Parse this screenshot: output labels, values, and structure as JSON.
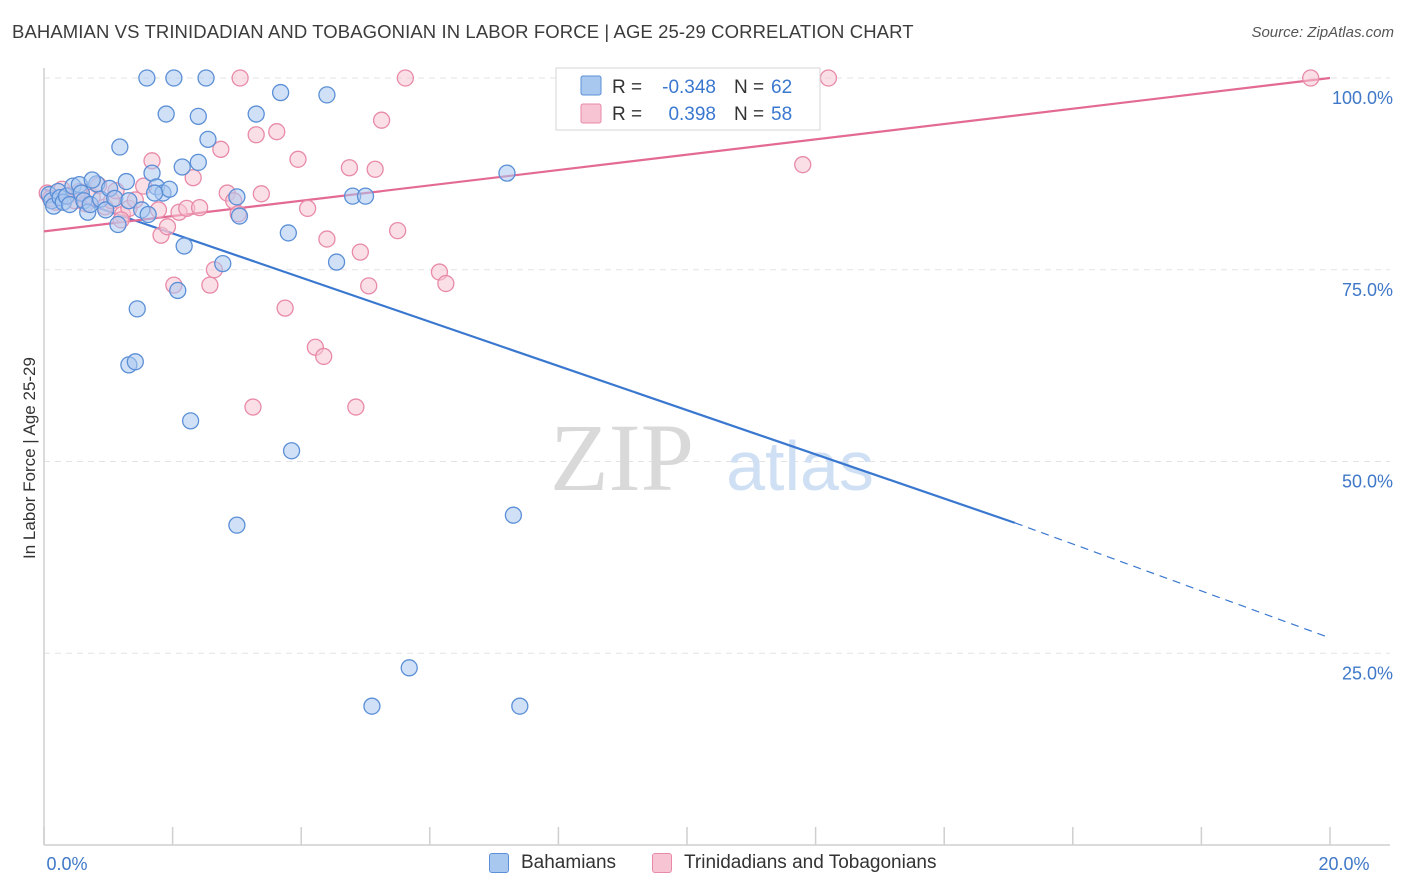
{
  "title": "BAHAMIAN VS TRINIDADIAN AND TOBAGONIAN IN LABOR FORCE | AGE 25-29 CORRELATION CHART",
  "source": "Source: ZipAtlas.com",
  "watermark": {
    "zip": "ZIP",
    "atlas": "atlas"
  },
  "colors": {
    "blue_fill": "#a9c8f0",
    "blue_stroke": "#5b8fd6",
    "blue_line": "#3a78d0",
    "pink_fill": "#f7c4d4",
    "pink_stroke": "#e88aa8",
    "pink_line": "#e36a94",
    "tick_label": "#3f78c8",
    "grid": "#e3e3e3"
  },
  "legend": {
    "r_label": "R =",
    "n_label": "N =",
    "rows": [
      {
        "r": "-0.348",
        "n": "62"
      },
      {
        "r": "0.398",
        "n": "58"
      }
    ]
  },
  "chart_data": {
    "type": "scatter",
    "title": "BAHAMIAN VS TRINIDADIAN AND TOBAGONIAN IN LABOR FORCE | AGE 25-29 CORRELATION CHART",
    "xlabel": "",
    "ylabel": "In Labor Force | Age 25-29",
    "xlim": [
      0,
      20
    ],
    "ylim": [
      0,
      100
    ],
    "x_tick_labels": [
      "0.0%",
      "20.0%"
    ],
    "y_ticks": [
      25,
      50,
      75,
      100
    ],
    "y_tick_labels": [
      "25.0%",
      "50.0%",
      "75.0%",
      "100.0%"
    ],
    "series": [
      {
        "name": "Bahamians",
        "r": -0.348,
        "n": 62,
        "trend": {
          "x0": 0.0,
          "y0": 85.5,
          "x1": 15.1,
          "y1": 42.0,
          "dash_to_x": 20.0,
          "dash_to_y": 27.0
        },
        "points": [
          [
            0.08,
            84.8
          ],
          [
            0.12,
            84.0
          ],
          [
            0.15,
            83.3
          ],
          [
            0.22,
            85.2
          ],
          [
            0.25,
            84.4
          ],
          [
            0.3,
            83.8
          ],
          [
            0.35,
            84.6
          ],
          [
            0.4,
            83.5
          ],
          [
            0.45,
            85.9
          ],
          [
            0.55,
            86.1
          ],
          [
            0.58,
            85.0
          ],
          [
            0.62,
            84.0
          ],
          [
            0.68,
            82.5
          ],
          [
            0.72,
            83.5
          ],
          [
            0.82,
            86.2
          ],
          [
            0.88,
            84.2
          ],
          [
            0.96,
            82.8
          ],
          [
            1.02,
            85.6
          ],
          [
            1.1,
            84.3
          ],
          [
            1.15,
            80.9
          ],
          [
            1.18,
            91.0
          ],
          [
            1.28,
            86.5
          ],
          [
            1.32,
            84.0
          ],
          [
            1.52,
            82.8
          ],
          [
            1.62,
            82.2
          ],
          [
            1.68,
            87.6
          ],
          [
            1.75,
            85.8
          ],
          [
            1.85,
            85.0
          ],
          [
            1.95,
            85.5
          ],
          [
            1.6,
            100.0
          ],
          [
            2.02,
            100.0
          ],
          [
            2.52,
            100.0
          ],
          [
            1.9,
            95.3
          ],
          [
            2.4,
            95.0
          ],
          [
            2.55,
            92.0
          ],
          [
            2.4,
            89.0
          ],
          [
            2.15,
            88.4
          ],
          [
            2.08,
            72.3
          ],
          [
            2.18,
            78.1
          ],
          [
            1.45,
            69.9
          ],
          [
            1.32,
            62.6
          ],
          [
            1.42,
            63.0
          ],
          [
            2.28,
            55.3
          ],
          [
            3.0,
            84.5
          ],
          [
            3.04,
            82.0
          ],
          [
            2.78,
            75.8
          ],
          [
            3.3,
            95.3
          ],
          [
            3.68,
            98.1
          ],
          [
            3.8,
            79.8
          ],
          [
            4.4,
            97.8
          ],
          [
            4.55,
            76.0
          ],
          [
            4.8,
            84.6
          ],
          [
            5.0,
            84.6
          ],
          [
            3.85,
            51.4
          ],
          [
            3.0,
            41.7
          ],
          [
            7.2,
            87.6
          ],
          [
            7.3,
            43.0
          ],
          [
            5.1,
            18.1
          ],
          [
            5.68,
            23.1
          ],
          [
            7.4,
            18.1
          ],
          [
            0.75,
            86.7
          ],
          [
            1.72,
            85.0
          ]
        ]
      },
      {
        "name": "Trinidadians and Tobagonians",
        "r": 0.398,
        "n": 58,
        "trend": {
          "x0": 0.0,
          "y0": 80.0,
          "x1": 20.0,
          "y1": 100.0
        },
        "points": [
          [
            0.05,
            85.0
          ],
          [
            0.1,
            84.3
          ],
          [
            0.18,
            83.8
          ],
          [
            0.28,
            85.5
          ],
          [
            0.38,
            84.7
          ],
          [
            0.48,
            84.0
          ],
          [
            0.55,
            85.2
          ],
          [
            0.65,
            83.6
          ],
          [
            0.75,
            84.5
          ],
          [
            0.85,
            86.0
          ],
          [
            0.95,
            83.2
          ],
          [
            1.05,
            84.0
          ],
          [
            1.12,
            85.3
          ],
          [
            1.22,
            82.2
          ],
          [
            1.32,
            83.0
          ],
          [
            1.42,
            84.1
          ],
          [
            1.55,
            85.9
          ],
          [
            1.68,
            89.2
          ],
          [
            1.78,
            82.8
          ],
          [
            1.82,
            79.5
          ],
          [
            1.92,
            80.6
          ],
          [
            2.02,
            73.0
          ],
          [
            2.1,
            82.5
          ],
          [
            2.22,
            83.0
          ],
          [
            2.32,
            87.0
          ],
          [
            2.42,
            83.1
          ],
          [
            2.58,
            73.0
          ],
          [
            2.65,
            75.0
          ],
          [
            2.75,
            90.7
          ],
          [
            2.85,
            85.0
          ],
          [
            2.95,
            84.0
          ],
          [
            3.02,
            82.3
          ],
          [
            3.05,
            100.0
          ],
          [
            3.25,
            57.1
          ],
          [
            3.3,
            92.6
          ],
          [
            3.38,
            84.9
          ],
          [
            3.62,
            93.0
          ],
          [
            3.75,
            70.0
          ],
          [
            3.95,
            89.4
          ],
          [
            4.1,
            83.0
          ],
          [
            4.22,
            64.9
          ],
          [
            4.35,
            63.7
          ],
          [
            4.4,
            79.0
          ],
          [
            4.75,
            88.3
          ],
          [
            4.85,
            57.1
          ],
          [
            4.92,
            77.3
          ],
          [
            5.05,
            72.9
          ],
          [
            5.15,
            88.1
          ],
          [
            5.25,
            94.5
          ],
          [
            5.5,
            80.1
          ],
          [
            5.62,
            100.0
          ],
          [
            6.15,
            74.7
          ],
          [
            6.25,
            73.2
          ],
          [
            11.1,
            100.0
          ],
          [
            12.2,
            100.0
          ],
          [
            11.8,
            88.7
          ],
          [
            19.7,
            100.0
          ],
          [
            1.2,
            81.5
          ]
        ]
      }
    ]
  }
}
